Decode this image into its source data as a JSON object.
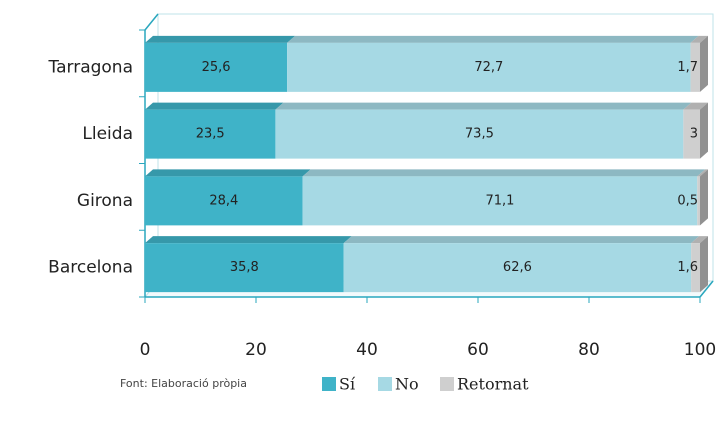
{
  "chart_data": {
    "type": "stacked-barh",
    "categories": [
      "Tarragona",
      "Lleida",
      "Girona",
      "Barcelona"
    ],
    "series": [
      {
        "name": "Sí",
        "color": "#3fb3c8",
        "values": [
          25.6,
          23.5,
          28.4,
          35.8
        ],
        "value_labels": [
          "25,6",
          "23,5",
          "28,4",
          "35,8"
        ]
      },
      {
        "name": "No",
        "color": "#a6d9e4",
        "values": [
          72.7,
          73.5,
          71.1,
          62.6
        ],
        "value_labels": [
          "72,7",
          "73,5",
          "71,1",
          "62,6"
        ]
      },
      {
        "name": "Retornat",
        "color": "#cfcfcf",
        "values": [
          1.7,
          3,
          0.5,
          1.6
        ],
        "value_labels": [
          "1,7",
          "3",
          "0,5",
          "1,6"
        ]
      }
    ],
    "xlim": [
      0,
      100
    ],
    "xticks": [
      0,
      20,
      40,
      60,
      80,
      100
    ],
    "source": "Font: Elaboració pròpia"
  }
}
